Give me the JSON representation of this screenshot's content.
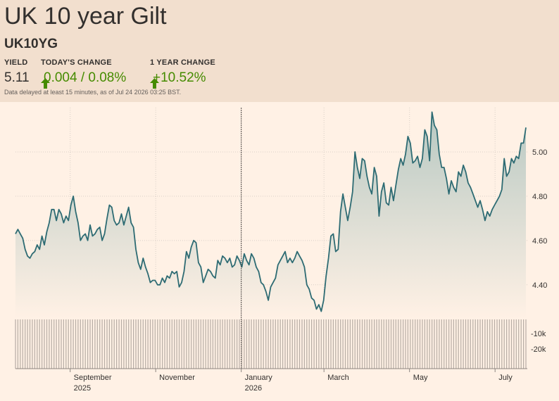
{
  "header": {
    "title": "UK 10 year Gilt",
    "symbol": "UK10YG",
    "yield_label": "YIELD",
    "yield_value": "5.11",
    "todays_change_label": "TODAY'S CHANGE",
    "todays_change_value": "0.004 / 0.08%",
    "year_change_label": "1 YEAR CHANGE",
    "year_change_value": "+10.52%",
    "delay_note": "Data delayed at least 15 minutes, as of Jul 24 2026 03:25 BST."
  },
  "colors": {
    "line": "#2d6b73",
    "fill_top": "#b9c9c3",
    "up": "#458b00",
    "volume": "#b6aca4",
    "grid": "#d9cfc6"
  },
  "chart_data": {
    "type": "area",
    "title": "",
    "x_range": [
      "2025-07-24",
      "2026-07-24"
    ],
    "ylim": [
      4.25,
      5.2
    ],
    "y_ticks": [
      4.4,
      4.6,
      4.8,
      5.0
    ],
    "y_tick_labels": [
      "4.40",
      "4.60",
      "4.80",
      "5.00"
    ],
    "volume_tick_labels": [
      "-10k",
      "-20k"
    ],
    "x_tick_labels": [
      {
        "label": "September",
        "sub": "2025"
      },
      {
        "label": "November",
        "sub": ""
      },
      {
        "label": "January",
        "sub": "2026"
      },
      {
        "label": "March",
        "sub": ""
      },
      {
        "label": "May",
        "sub": ""
      },
      {
        "label": "July",
        "sub": ""
      }
    ],
    "x_tick_dates": [
      "2025-09-01",
      "2025-11-01",
      "2026-01-01",
      "2026-03-01",
      "2026-05-01",
      "2026-07-01"
    ],
    "divider_date": "2026-01-01",
    "series": [
      {
        "values": [
          4.63,
          4.65,
          4.63,
          4.61,
          4.56,
          4.53,
          4.52,
          4.54,
          4.55,
          4.58,
          4.56,
          4.62,
          4.58,
          4.64,
          4.68,
          4.74,
          4.74,
          4.69,
          4.74,
          4.72,
          4.68,
          4.71,
          4.69,
          4.76,
          4.8,
          4.73,
          4.68,
          4.6,
          4.62,
          4.63,
          4.6,
          4.67,
          4.62,
          4.63,
          4.65,
          4.66,
          4.6,
          4.63,
          4.7,
          4.76,
          4.75,
          4.69,
          4.67,
          4.68,
          4.72,
          4.67,
          4.71,
          4.75,
          4.68,
          4.66,
          4.56,
          4.5,
          4.47,
          4.52,
          4.48,
          4.45,
          4.41,
          4.42,
          4.42,
          4.4,
          4.4,
          4.43,
          4.41,
          4.44,
          4.43,
          4.46,
          4.45,
          4.46,
          4.39,
          4.41,
          4.46,
          4.55,
          4.52,
          4.57,
          4.6,
          4.59,
          4.5,
          4.48,
          4.41,
          4.44,
          4.47,
          4.46,
          4.44,
          4.43,
          4.51,
          4.49,
          4.53,
          4.52,
          4.5,
          4.52,
          4.48,
          4.49,
          4.53,
          4.51,
          4.48,
          4.54,
          4.51,
          4.49,
          4.54,
          4.52,
          4.48,
          4.46,
          4.41,
          4.4,
          4.37,
          4.33,
          4.39,
          4.41,
          4.43,
          4.49,
          4.51,
          4.53,
          4.55,
          4.5,
          4.52,
          4.5,
          4.52,
          4.55,
          4.53,
          4.51,
          4.48,
          4.4,
          4.38,
          4.34,
          4.33,
          4.29,
          4.31,
          4.28,
          4.33,
          4.44,
          4.52,
          4.62,
          4.63,
          4.55,
          4.56,
          4.73,
          4.81,
          4.75,
          4.69,
          4.75,
          4.82,
          5.0,
          4.93,
          4.88,
          4.97,
          4.96,
          4.89,
          4.84,
          4.81,
          4.93,
          4.89,
          4.71,
          4.82,
          4.86,
          4.77,
          4.76,
          4.84,
          4.78,
          4.85,
          4.92,
          4.97,
          4.94,
          4.99,
          5.07,
          5.04,
          4.95,
          4.96,
          4.98,
          4.93,
          4.97,
          5.1,
          5.07,
          4.96,
          5.18,
          5.12,
          5.1,
          4.99,
          4.93,
          4.93,
          4.88,
          4.81,
          4.87,
          4.84,
          4.82,
          4.91,
          4.89,
          4.94,
          4.91,
          4.86,
          4.84,
          4.81,
          4.78,
          4.75,
          4.78,
          4.74,
          4.69,
          4.73,
          4.71,
          4.74,
          4.76,
          4.78,
          4.8,
          4.83,
          4.97,
          4.89,
          4.91,
          4.97,
          4.95,
          4.98,
          4.97,
          5.04,
          5.04,
          5.11
        ]
      }
    ]
  }
}
